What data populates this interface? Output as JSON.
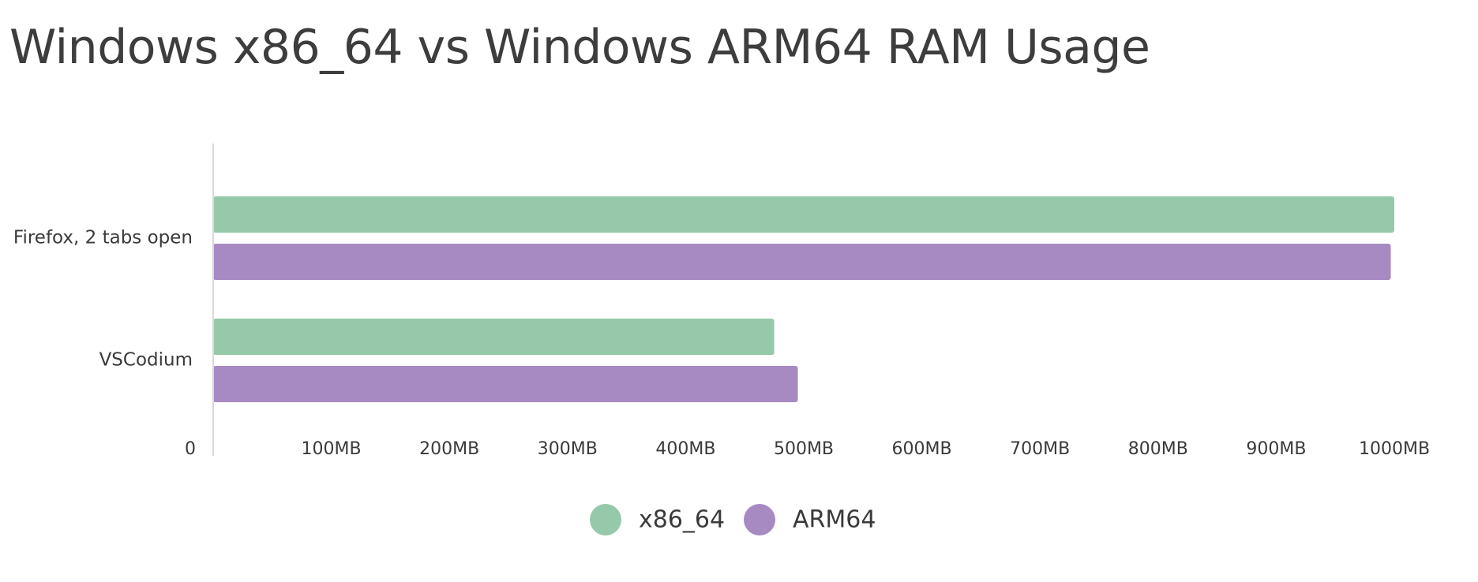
{
  "chart_data": {
    "type": "bar",
    "orientation": "horizontal",
    "title": "Windows x86_64 vs Windows ARM64 RAM Usage",
    "categories": [
      "Firefox, 2 tabs open",
      "VSCodium"
    ],
    "series": [
      {
        "name": "x86_64",
        "color": "#96c9aa",
        "values": [
          1000,
          475
        ]
      },
      {
        "name": "ARM64",
        "color": "#a88ac3",
        "values": [
          997,
          495
        ]
      }
    ],
    "x_ticks": [
      {
        "value": 0,
        "label": "0"
      },
      {
        "value": 100,
        "label": "100MB"
      },
      {
        "value": 200,
        "label": "200MB"
      },
      {
        "value": 300,
        "label": "300MB"
      },
      {
        "value": 400,
        "label": "400MB"
      },
      {
        "value": 500,
        "label": "500MB"
      },
      {
        "value": 600,
        "label": "600MB"
      },
      {
        "value": 700,
        "label": "700MB"
      },
      {
        "value": 800,
        "label": "800MB"
      },
      {
        "value": 900,
        "label": "900MB"
      },
      {
        "value": 1000,
        "label": "1000MB"
      }
    ],
    "xlim": [
      0,
      1000
    ],
    "xlabel": "",
    "ylabel": "",
    "grid": false,
    "legend_position": "bottom-center"
  }
}
